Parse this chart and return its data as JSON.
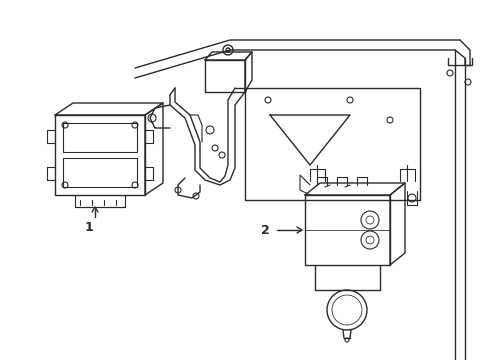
{
  "bg_color": "#ffffff",
  "line_color": "#2a2a2a",
  "line_width": 1.0,
  "fig_width": 4.89,
  "fig_height": 3.6,
  "dpi": 100,
  "label1": "1",
  "label2": "2"
}
